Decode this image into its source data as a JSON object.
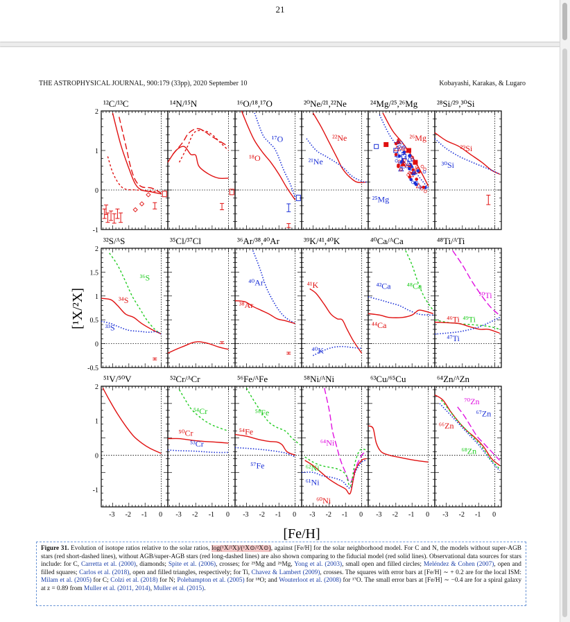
{
  "page_number": "21",
  "running_head": {
    "left": "THE ASTROPHYSICAL JOURNAL, 900:179 (33pp), 2020 September 10",
    "right": "Kobayashi, Karakas, & Lugaro"
  },
  "figure": {
    "y_axis_label": "[¹X/²X]",
    "x_axis_label": "[Fe/H]",
    "x_ticks": [
      "-3",
      "-2",
      "-1",
      "0"
    ],
    "row_y_ticks": [
      [
        "2",
        "1",
        "0",
        "-1"
      ],
      [
        "2",
        "1.5",
        "1",
        "0.5",
        "0",
        "-0.5"
      ],
      [
        "2",
        "1",
        "0",
        "-1"
      ]
    ],
    "panels": [
      {
        "title": "¹²C/¹³C",
        "labels": []
      },
      {
        "title": "¹⁴N/¹⁵N",
        "labels": []
      },
      {
        "title": "¹⁶O/¹⁸,¹⁷O",
        "labels": [
          {
            "text": "¹⁷O",
            "color": "#1a2fd6"
          },
          {
            "text": "¹⁸O",
            "color": "#e01010"
          }
        ]
      },
      {
        "title": "²⁰Ne/²¹,²²Ne",
        "labels": [
          {
            "text": "²²Ne",
            "color": "#e01010"
          },
          {
            "text": "²¹Ne",
            "color": "#1a2fd6"
          }
        ]
      },
      {
        "title": "²⁴Mg/²⁵,²⁶Mg",
        "labels": [
          {
            "text": "²⁶Mg",
            "color": "#e01010"
          },
          {
            "text": "²⁵Mg",
            "color": "#1a2fd6"
          }
        ]
      },
      {
        "title": "²⁸Si/²⁹,³⁰Si",
        "labels": [
          {
            "text": "²⁹Si",
            "color": "#e01010"
          },
          {
            "text": "³⁰Si",
            "color": "#1a2fd6"
          }
        ]
      },
      {
        "title": "³²S/ᴬS",
        "labels": [
          {
            "text": "³⁶S",
            "color": "#22cc22"
          },
          {
            "text": "³⁴S",
            "color": "#e01010"
          },
          {
            "text": "³³S",
            "color": "#1a2fd6"
          }
        ]
      },
      {
        "title": "³⁵Cl/³⁷Cl",
        "labels": []
      },
      {
        "title": "³⁶Ar/³⁸,⁴⁰Ar",
        "labels": [
          {
            "text": "⁴⁰Ar",
            "color": "#1a2fd6"
          },
          {
            "text": "³⁸Ar",
            "color": "#e01010"
          }
        ]
      },
      {
        "title": "³⁹K/⁴¹,⁴⁰K",
        "labels": [
          {
            "text": "⁴¹K",
            "color": "#e01010"
          },
          {
            "text": "⁴⁰K",
            "color": "#1a2fd6"
          }
        ]
      },
      {
        "title": "⁴⁰Ca/ᴬCa",
        "labels": [
          {
            "text": "⁴²Ca",
            "color": "#1a2fd6"
          },
          {
            "text": "⁴⁸Ca",
            "color": "#22cc22"
          },
          {
            "text": "⁴⁴Ca",
            "color": "#e01010"
          }
        ]
      },
      {
        "title": "⁴⁸Ti/ᴬTi",
        "labels": [
          {
            "text": "⁵⁰Ti",
            "color": "#e010e0"
          },
          {
            "text": "⁴⁶Ti",
            "color": "#e01010"
          },
          {
            "text": "⁴⁹Ti",
            "color": "#22cc22"
          },
          {
            "text": "⁴⁷Ti",
            "color": "#1a2fd6"
          }
        ]
      },
      {
        "title": "⁵¹V/⁵⁰V",
        "labels": []
      },
      {
        "title": "⁵²Cr/ᴬCr",
        "labels": [
          {
            "text": "⁵⁴Cr",
            "color": "#22cc22"
          },
          {
            "text": "⁵⁰Cr",
            "color": "#e01010"
          },
          {
            "text": "⁵³Cr",
            "color": "#1a2fd6"
          }
        ]
      },
      {
        "title": "⁵⁶Fe/ᴬFe",
        "labels": [
          {
            "text": "⁵⁸Fe",
            "color": "#22cc22"
          },
          {
            "text": "⁵⁴Fe",
            "color": "#e01010"
          },
          {
            "text": "⁵⁷Fe",
            "color": "#1a2fd6"
          }
        ]
      },
      {
        "title": "⁵⁸Ni/ᴬNi",
        "labels": [
          {
            "text": "⁶⁴Ni",
            "color": "#e010e0"
          },
          {
            "text": "⁶²Ni",
            "color": "#22cc22"
          },
          {
            "text": "⁶¹Ni",
            "color": "#1a2fd6"
          },
          {
            "text": "⁶⁰Ni",
            "color": "#e01010"
          }
        ]
      },
      {
        "title": "⁶³Cu/⁶⁵Cu",
        "labels": []
      },
      {
        "title": "⁶⁴Zn/ᴬZn",
        "labels": [
          {
            "text": "⁷⁰Zn",
            "color": "#e010e0"
          },
          {
            "text": "⁶⁷Zn",
            "color": "#1a2fd6"
          },
          {
            "text": "⁶⁶Zn",
            "color": "#e01010"
          },
          {
            "text": "⁶⁸Zn",
            "color": "#22cc22"
          }
        ]
      }
    ]
  },
  "caption": {
    "label": "Figure 31.",
    "s1": " Evolution of isotope ratios relative to the solar ratios, ",
    "math": "log(¹X/²X)/(¹X⊙/²X⊙)",
    "s2": ", against [Fe/H] for the solar neighborhood model. For C and N, the models without super-AGB stars (red short-dashed lines), without AGB/super-AGB stars (red long-dashed lines) are also shown comparing to the fiducial model (red solid lines). Observational data sources for stars include: for C, ",
    "c1": "Carretta et al. (2000)",
    "s3": ", diamonds; ",
    "c2": "Spite et al. (2006)",
    "s4": ", crosses; for ²⁵Mg and ²⁶Mg, ",
    "c3": "Yong et al. (2003)",
    "s5": ", small open and filled circles; ",
    "c4": "Meléndez & Cohen (2007)",
    "s6": ", open and filled squares; ",
    "c5": "Carlos et al. (2018)",
    "s7": ", open and filled triangles, respectively; for Ti, ",
    "c6": "Chavez & Lambert (2009)",
    "s8": ", crosses. The squares with error bars at [Fe/H] ∼ + 0.2 are for the local ISM: ",
    "c7": "Milam et al. (2005)",
    "s9": " for C; ",
    "c8": "Colzi et al. (2018)",
    "s10": " for N; ",
    "c9": "Polehampton et al. (2005)",
    "s11": " for ¹⁸O; and ",
    "c10": "Wouterloot et al. (2008)",
    "s12": " for ¹⁷O. The small error bars at [Fe/H] ∼ −0.4 are for a spiral galaxy at z = 0.89 from ",
    "c11": "Muller et al. (2011, 2014)",
    "s13": ", ",
    "c12": "Muller et al. (2015)",
    "s14": "."
  },
  "colors": {
    "red": "#e01010",
    "blue": "#1a2fd6",
    "green": "#22cc22",
    "magenta": "#e010e0",
    "highlight": "#f4c7c7",
    "caption_border": "#6a95d6"
  }
}
